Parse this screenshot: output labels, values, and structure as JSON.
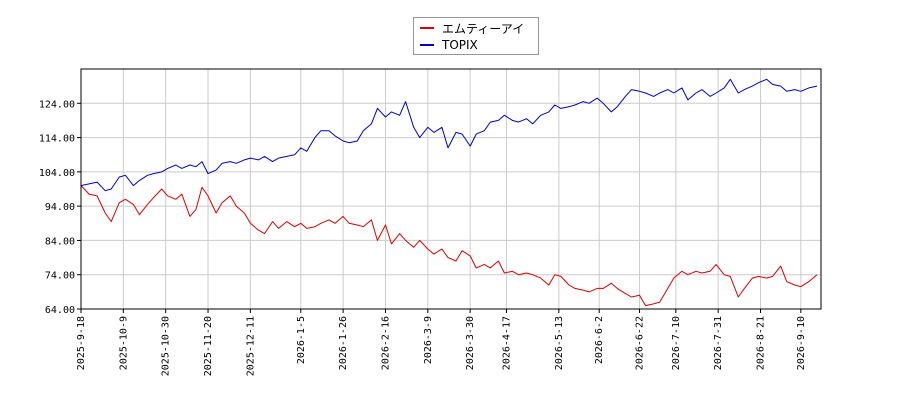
{
  "chart_data": {
    "type": "line",
    "title": "",
    "xlabel": "",
    "ylabel": "",
    "ylim": [
      64,
      134
    ],
    "yticks": [
      "64.00",
      "74.00",
      "84.00",
      "94.00",
      "104.00",
      "114.00",
      "124.00"
    ],
    "xticks": [
      "2025-9-18",
      "2025-10-9",
      "2025-10-30",
      "2025-11-20",
      "2025-12-11",
      "2026-1-5",
      "2026-1-26",
      "2026-2-16",
      "2026-3-9",
      "2026-3-30",
      "2026-4-17",
      "2026-5-13",
      "2026-6-2",
      "2026-6-22",
      "2026-7-10",
      "2026-7-31",
      "2026-8-21",
      "2026-9-10"
    ],
    "xlim": [
      "2025-09-18",
      "2026-09-20"
    ],
    "grid": true,
    "legend_position": "top-center",
    "series": [
      {
        "name": "エムティーアイ",
        "color": "#dd0000",
        "points": [
          [
            "2025-09-18",
            100
          ],
          [
            "2025-09-22",
            97.5
          ],
          [
            "2025-09-26",
            97
          ],
          [
            "2025-09-30",
            92
          ],
          [
            "2025-10-03",
            89.5
          ],
          [
            "2025-10-07",
            95
          ],
          [
            "2025-10-10",
            96
          ],
          [
            "2025-10-14",
            94.5
          ],
          [
            "2025-10-17",
            91.5
          ],
          [
            "2025-10-21",
            94.5
          ],
          [
            "2025-10-24",
            96.5
          ],
          [
            "2025-10-28",
            99
          ],
          [
            "2025-10-31",
            97
          ],
          [
            "2025-11-04",
            96
          ],
          [
            "2025-11-07",
            97.5
          ],
          [
            "2025-11-11",
            91
          ],
          [
            "2025-11-14",
            93
          ],
          [
            "2025-11-17",
            99.5
          ],
          [
            "2025-11-20",
            97
          ],
          [
            "2025-11-24",
            92
          ],
          [
            "2025-11-27",
            95
          ],
          [
            "2025-12-01",
            97
          ],
          [
            "2025-12-04",
            94
          ],
          [
            "2025-12-08",
            92
          ],
          [
            "2025-12-11",
            89
          ],
          [
            "2025-12-15",
            87
          ],
          [
            "2025-12-18",
            86
          ],
          [
            "2025-12-22",
            89.5
          ],
          [
            "2025-12-25",
            87.5
          ],
          [
            "2025-12-29",
            89.5
          ],
          [
            "2026-01-02",
            88
          ],
          [
            "2026-01-05",
            89
          ],
          [
            "2026-01-08",
            87.5
          ],
          [
            "2026-01-12",
            88
          ],
          [
            "2026-01-15",
            89
          ],
          [
            "2026-01-19",
            90
          ],
          [
            "2026-01-22",
            89
          ],
          [
            "2026-01-26",
            91
          ],
          [
            "2026-01-29",
            89
          ],
          [
            "2026-02-02",
            88.5
          ],
          [
            "2026-02-05",
            88
          ],
          [
            "2026-02-09",
            90
          ],
          [
            "2026-02-12",
            84
          ],
          [
            "2026-02-16",
            88.5
          ],
          [
            "2026-02-19",
            83
          ],
          [
            "2026-02-23",
            86
          ],
          [
            "2026-02-26",
            84
          ],
          [
            "2026-03-02",
            82
          ],
          [
            "2026-03-05",
            84
          ],
          [
            "2026-03-09",
            81.5
          ],
          [
            "2026-03-12",
            80
          ],
          [
            "2026-03-16",
            81.5
          ],
          [
            "2026-03-19",
            79
          ],
          [
            "2026-03-23",
            78
          ],
          [
            "2026-03-26",
            81
          ],
          [
            "2026-03-30",
            79.5
          ],
          [
            "2026-04-02",
            76
          ],
          [
            "2026-04-06",
            77
          ],
          [
            "2026-04-09",
            76
          ],
          [
            "2026-04-13",
            78
          ],
          [
            "2026-04-16",
            74.5
          ],
          [
            "2026-04-20",
            75
          ],
          [
            "2026-04-23",
            74
          ],
          [
            "2026-04-27",
            74.5
          ],
          [
            "2026-04-30",
            74
          ],
          [
            "2026-05-04",
            73
          ],
          [
            "2026-05-08",
            71
          ],
          [
            "2026-05-11",
            74
          ],
          [
            "2026-05-14",
            73.5
          ],
          [
            "2026-05-18",
            71
          ],
          [
            "2026-05-21",
            70
          ],
          [
            "2026-05-25",
            69.5
          ],
          [
            "2026-05-28",
            69
          ],
          [
            "2026-06-01",
            70
          ],
          [
            "2026-06-04",
            70
          ],
          [
            "2026-06-08",
            71.5
          ],
          [
            "2026-06-11",
            70
          ],
          [
            "2026-06-15",
            68.5
          ],
          [
            "2026-06-18",
            67.5
          ],
          [
            "2026-06-22",
            68
          ],
          [
            "2026-06-25",
            65
          ],
          [
            "2026-06-29",
            65.5
          ],
          [
            "2026-07-02",
            66
          ],
          [
            "2026-07-06",
            70
          ],
          [
            "2026-07-09",
            73
          ],
          [
            "2026-07-13",
            75
          ],
          [
            "2026-07-16",
            74
          ],
          [
            "2026-07-20",
            75
          ],
          [
            "2026-07-23",
            74.5
          ],
          [
            "2026-07-27",
            75
          ],
          [
            "2026-07-30",
            77
          ],
          [
            "2026-08-03",
            74
          ],
          [
            "2026-08-06",
            73.5
          ],
          [
            "2026-08-10",
            67.5
          ],
          [
            "2026-08-13",
            70
          ],
          [
            "2026-08-17",
            73
          ],
          [
            "2026-08-20",
            73.5
          ],
          [
            "2026-08-24",
            73
          ],
          [
            "2026-08-27",
            73.5
          ],
          [
            "2026-08-31",
            76.5
          ],
          [
            "2026-09-03",
            72
          ],
          [
            "2026-09-07",
            71
          ],
          [
            "2026-09-10",
            70.5
          ],
          [
            "2026-09-14",
            72
          ],
          [
            "2026-09-18",
            74
          ]
        ]
      },
      {
        "name": "TOPIX",
        "color": "#0000cc",
        "points": [
          [
            "2025-09-18",
            100
          ],
          [
            "2025-09-22",
            100.5
          ],
          [
            "2025-09-26",
            101
          ],
          [
            "2025-09-30",
            98.5
          ],
          [
            "2025-10-03",
            99
          ],
          [
            "2025-10-07",
            102.5
          ],
          [
            "2025-10-10",
            103
          ],
          [
            "2025-10-14",
            100
          ],
          [
            "2025-10-17",
            101.5
          ],
          [
            "2025-10-21",
            103
          ],
          [
            "2025-10-24",
            103.5
          ],
          [
            "2025-10-28",
            104
          ],
          [
            "2025-10-31",
            105
          ],
          [
            "2025-11-04",
            106
          ],
          [
            "2025-11-07",
            105
          ],
          [
            "2025-11-11",
            106
          ],
          [
            "2025-11-14",
            105.5
          ],
          [
            "2025-11-17",
            107
          ],
          [
            "2025-11-20",
            103.5
          ],
          [
            "2025-11-24",
            104.5
          ],
          [
            "2025-11-27",
            106.5
          ],
          [
            "2025-12-01",
            107
          ],
          [
            "2025-12-04",
            106.5
          ],
          [
            "2025-12-08",
            107.5
          ],
          [
            "2025-12-11",
            108
          ],
          [
            "2025-12-15",
            107.5
          ],
          [
            "2025-12-18",
            108.5
          ],
          [
            "2025-12-22",
            107
          ],
          [
            "2025-12-25",
            108
          ],
          [
            "2025-12-29",
            108.5
          ],
          [
            "2026-01-02",
            109
          ],
          [
            "2026-01-05",
            111
          ],
          [
            "2026-01-08",
            110
          ],
          [
            "2026-01-12",
            114
          ],
          [
            "2026-01-15",
            116
          ],
          [
            "2026-01-19",
            116
          ],
          [
            "2026-01-22",
            114.5
          ],
          [
            "2026-01-26",
            113
          ],
          [
            "2026-01-29",
            112.5
          ],
          [
            "2026-02-02",
            113
          ],
          [
            "2026-02-05",
            116
          ],
          [
            "2026-02-09",
            118
          ],
          [
            "2026-02-12",
            122.5
          ],
          [
            "2026-02-16",
            120
          ],
          [
            "2026-02-19",
            121.5
          ],
          [
            "2026-02-23",
            120.5
          ],
          [
            "2026-02-26",
            124.5
          ],
          [
            "2026-03-02",
            117
          ],
          [
            "2026-03-05",
            114
          ],
          [
            "2026-03-09",
            117
          ],
          [
            "2026-03-12",
            115.5
          ],
          [
            "2026-03-16",
            117
          ],
          [
            "2026-03-19",
            111
          ],
          [
            "2026-03-23",
            115.5
          ],
          [
            "2026-03-26",
            115
          ],
          [
            "2026-03-30",
            111.5
          ],
          [
            "2026-04-02",
            115
          ],
          [
            "2026-04-06",
            116
          ],
          [
            "2026-04-09",
            118.5
          ],
          [
            "2026-04-13",
            119
          ],
          [
            "2026-04-16",
            120.5
          ],
          [
            "2026-04-20",
            119
          ],
          [
            "2026-04-23",
            118.5
          ],
          [
            "2026-04-27",
            119.5
          ],
          [
            "2026-04-30",
            118
          ],
          [
            "2026-05-04",
            120.5
          ],
          [
            "2026-05-08",
            121.5
          ],
          [
            "2026-05-11",
            123.5
          ],
          [
            "2026-05-14",
            122.5
          ],
          [
            "2026-05-18",
            123
          ],
          [
            "2026-05-21",
            123.5
          ],
          [
            "2026-05-25",
            124.5
          ],
          [
            "2026-05-28",
            124
          ],
          [
            "2026-06-01",
            125.5
          ],
          [
            "2026-06-04",
            124
          ],
          [
            "2026-06-08",
            121.5
          ],
          [
            "2026-06-11",
            123
          ],
          [
            "2026-06-15",
            126
          ],
          [
            "2026-06-18",
            128
          ],
          [
            "2026-06-22",
            127.5
          ],
          [
            "2026-06-25",
            127
          ],
          [
            "2026-06-29",
            126
          ],
          [
            "2026-07-02",
            127
          ],
          [
            "2026-07-06",
            128
          ],
          [
            "2026-07-09",
            127
          ],
          [
            "2026-07-13",
            128.5
          ],
          [
            "2026-07-16",
            125
          ],
          [
            "2026-07-20",
            127
          ],
          [
            "2026-07-23",
            128
          ],
          [
            "2026-07-27",
            126
          ],
          [
            "2026-07-30",
            127
          ],
          [
            "2026-08-03",
            128.5
          ],
          [
            "2026-08-06",
            131
          ],
          [
            "2026-08-10",
            127
          ],
          [
            "2026-08-13",
            128
          ],
          [
            "2026-08-17",
            129
          ],
          [
            "2026-08-20",
            130
          ],
          [
            "2026-08-24",
            131
          ],
          [
            "2026-08-27",
            129.5
          ],
          [
            "2026-08-31",
            129
          ],
          [
            "2026-09-03",
            127.5
          ],
          [
            "2026-09-07",
            128
          ],
          [
            "2026-09-10",
            127.5
          ],
          [
            "2026-09-14",
            128.5
          ],
          [
            "2026-09-18",
            129
          ]
        ]
      }
    ]
  }
}
